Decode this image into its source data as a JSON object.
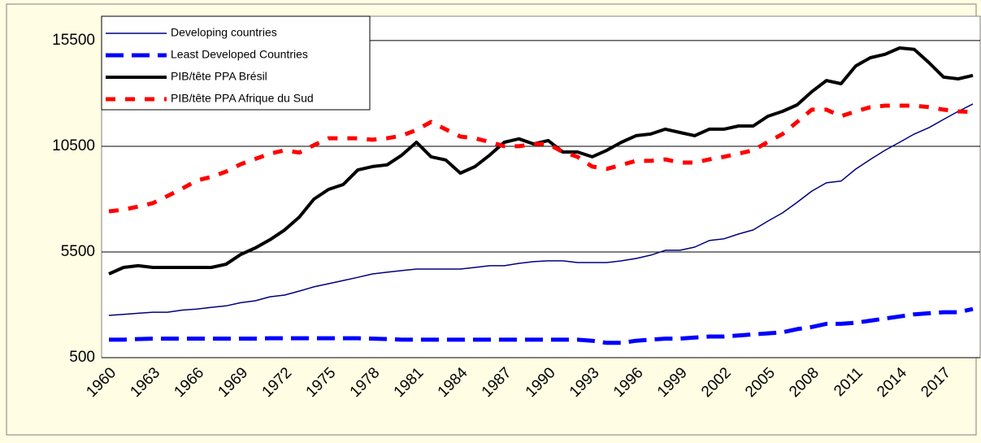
{
  "chart_data": {
    "type": "line",
    "categories": [
      "1960",
      null,
      null,
      "1963",
      null,
      null,
      "1966",
      null,
      null,
      "1969",
      null,
      null,
      "1972",
      null,
      null,
      "1975",
      null,
      null,
      "1978",
      null,
      null,
      "1981",
      null,
      null,
      "1984",
      null,
      null,
      "1987",
      null,
      null,
      "1990",
      null,
      null,
      "1993",
      null,
      null,
      "1996",
      null,
      null,
      "1999",
      null,
      null,
      "2002",
      null,
      null,
      "2005",
      null,
      null,
      "2008",
      null,
      null,
      "2011",
      null,
      null,
      "2014",
      null,
      null,
      "2017",
      null,
      null
    ],
    "series": [
      {
        "name": "Developing countries",
        "color": "#000080",
        "values": [
          2500,
          2550,
          2600,
          2650,
          2650,
          2750,
          2800,
          2880,
          2950,
          3100,
          3190,
          3380,
          3460,
          3650,
          3850,
          4000,
          4150,
          4300,
          4460,
          4540,
          4620,
          4690,
          4690,
          4690,
          4690,
          4770,
          4850,
          4850,
          4960,
          5040,
          5080,
          5080,
          5000,
          5000,
          5000,
          5080,
          5190,
          5350,
          5580,
          5580,
          5730,
          6040,
          6120,
          6350,
          6540,
          6960,
          7350,
          7850,
          8380,
          8770,
          8850,
          9420,
          9880,
          10310,
          10690,
          11080,
          11380,
          11770,
          12150,
          12500
        ]
      },
      {
        "name": "Least Developed Countries",
        "color": "#0000ff",
        "values": [
          1350,
          1350,
          1380,
          1400,
          1400,
          1400,
          1400,
          1400,
          1400,
          1400,
          1400,
          1420,
          1420,
          1420,
          1420,
          1420,
          1420,
          1420,
          1400,
          1380,
          1350,
          1350,
          1350,
          1350,
          1350,
          1350,
          1350,
          1350,
          1350,
          1350,
          1350,
          1350,
          1350,
          1300,
          1200,
          1200,
          1300,
          1350,
          1400,
          1400,
          1450,
          1500,
          1500,
          1550,
          1600,
          1650,
          1700,
          1850,
          1950,
          2100,
          2100,
          2150,
          2250,
          2350,
          2450,
          2550,
          2600,
          2650,
          2650,
          2800
        ]
      },
      {
        "name": "PIB/tête PPA Brésil",
        "color": "#000000",
        "values": [
          4460,
          4770,
          4850,
          4770,
          4770,
          4770,
          4770,
          4770,
          4920,
          5380,
          5690,
          6080,
          6540,
          7150,
          8000,
          8460,
          8690,
          9380,
          9540,
          9620,
          10080,
          10690,
          10000,
          9850,
          9230,
          9540,
          10080,
          10690,
          10850,
          10610,
          10770,
          10230,
          10230,
          10000,
          10310,
          10690,
          11000,
          11080,
          11310,
          11150,
          11000,
          11310,
          11310,
          11460,
          11460,
          11920,
          12150,
          12460,
          13080,
          13610,
          13460,
          14300,
          14690,
          14850,
          15150,
          15080,
          14460,
          13770,
          13690,
          13850
        ]
      },
      {
        "name": "PIB/tête PPA Afrique du Sud",
        "color": "#ff0000",
        "values": [
          7420,
          7500,
          7650,
          7810,
          8150,
          8500,
          8880,
          9050,
          9300,
          9650,
          9900,
          10150,
          10310,
          10200,
          10550,
          10880,
          10880,
          10880,
          10810,
          10880,
          11000,
          11270,
          11650,
          11300,
          10960,
          10880,
          10700,
          10500,
          10500,
          10610,
          10610,
          10230,
          10000,
          9540,
          9430,
          9620,
          9810,
          9810,
          9880,
          9730,
          9730,
          9880,
          10000,
          10150,
          10310,
          10700,
          11080,
          11650,
          12230,
          12230,
          11920,
          12150,
          12350,
          12420,
          12420,
          12420,
          12350,
          12230,
          12150,
          12120
        ]
      }
    ],
    "ylim": [
      500,
      16650
    ],
    "yticks": [
      500,
      5500,
      10500,
      15500
    ],
    "grid": true,
    "legend": "upper left"
  }
}
